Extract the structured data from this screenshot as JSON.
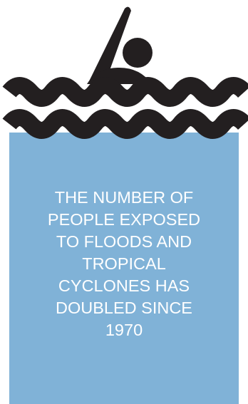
{
  "infographic": {
    "text_lines": [
      "THE NUMBER OF",
      "PEOPLE EXPOSED",
      "TO FLOODS AND",
      "TROPICAL",
      "CYCLONES HAS",
      "DOUBLED SINCE",
      "1970"
    ]
  },
  "icons": {
    "top": "swimmer-icon",
    "waves": "wave-lines"
  },
  "colors": {
    "water": "#80b2d7",
    "ink": "#231f20",
    "text": "#ffffff",
    "background": "#ffffff"
  }
}
